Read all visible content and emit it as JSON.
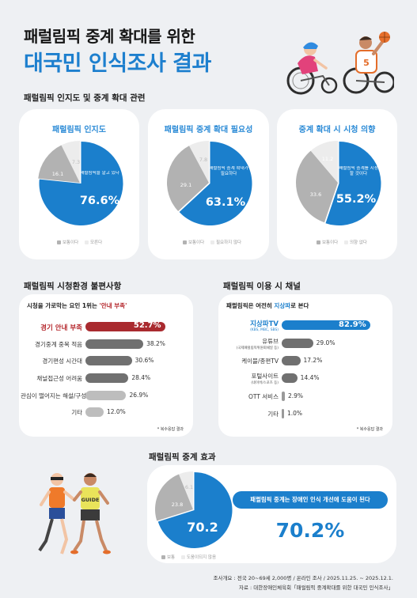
{
  "header": {
    "line1": "패럴림픽 중계 확대를 위한",
    "line2": "대국민 인식조사 결과"
  },
  "section1": {
    "title": "패럴림픽 인지도 및 중계 확대 관련"
  },
  "colors": {
    "blue": "#1b7fcc",
    "gray": "#b2b2b2",
    "light": "#ececec",
    "red": "#a92a2f",
    "darkbar": "#707070",
    "lightbar": "#bdbdbd"
  },
  "chart_data": [
    {
      "type": "pie",
      "title": "패럴림픽 인지도",
      "slices": [
        {
          "label": "패럴림픽을 알고 있다",
          "value": 76.6
        },
        {
          "label": "보통이다",
          "value": 16.1
        },
        {
          "label": "모른다",
          "value": 7.3
        }
      ],
      "highlight_text": "패럴림픽을 알고 있다",
      "highlight_value": "76.6%",
      "legend": [
        "보통이다",
        "모른다"
      ]
    },
    {
      "type": "pie",
      "title": "패럴림픽 중계 확대 필요성",
      "slices": [
        {
          "label": "패럴림픽 중계 확대가 필요하다",
          "value": 63.1
        },
        {
          "label": "보통이다",
          "value": 29.1
        },
        {
          "label": "필요하지 않다",
          "value": 7.8
        }
      ],
      "highlight_text": "패럴림픽 중계 확대가 필요하다",
      "highlight_value": "63.1%",
      "legend": [
        "보통이다",
        "필요하지 않다"
      ]
    },
    {
      "type": "pie",
      "title": "중계 확대 시 시청 의향",
      "slices": [
        {
          "label": "패럴림픽 중계를 시청할 것이다",
          "value": 55.2
        },
        {
          "label": "보통이다",
          "value": 33.6
        },
        {
          "label": "의향 없다",
          "value": 11.2
        }
      ],
      "highlight_text": "패럴림픽 중계를 시청할 것이다",
      "highlight_value": "55.2%",
      "legend": [
        "보통이다",
        "의향 없다"
      ]
    },
    {
      "type": "bar",
      "title": "패럴림픽 시청환경 불편사항",
      "subtitle_pre": "시청을 가로막는 요인 1위는 ",
      "subtitle_hl": "'안내 부족'",
      "categories": [
        "경기 안내 부족",
        "경기중계 중복 적음",
        "경기편성 시간대",
        "채널접근성 어려움",
        "관심이 떨어지는 해설/구성",
        "기타"
      ],
      "values": [
        52.7,
        38.2,
        30.6,
        28.4,
        26.9,
        12.0
      ],
      "value_labels": [
        "52.7%",
        "38.2%",
        "30.6%",
        "28.4%",
        "26.9%",
        "12.0%"
      ],
      "note": "* 복수응답 결과"
    },
    {
      "type": "bar",
      "title": "패럴림픽 이용 시 채널",
      "subtitle_pre": "패럴림픽은 여전히 ",
      "subtitle_hl": "지상파",
      "subtitle_post": "로 본다",
      "categories": [
        "지상파TV",
        "유튜브",
        "케이블/종편TV",
        "포털사이트",
        "OTT 서비스",
        "기타"
      ],
      "sublabels": [
        "(KBS, MBC, SBS)",
        "(국제패럴림픽위원회채널 등)",
        "",
        "(네이버/스포츠 등)",
        "",
        ""
      ],
      "values": [
        82.9,
        29.0,
        17.2,
        14.4,
        2.9,
        1.0
      ],
      "value_labels": [
        "82.9%",
        "29.0%",
        "17.2%",
        "14.4%",
        "2.9%",
        "1.0%"
      ],
      "note": "* 복수응답 결과"
    },
    {
      "type": "pie",
      "title": "패럴림픽 중계 효과",
      "slices": [
        {
          "label": "패럴림픽 중계는 장애인 인식 개선에 도움이 된다",
          "value": 70.2
        },
        {
          "label": "보통",
          "value": 23.8
        },
        {
          "label": "도움이 되지 않음",
          "value": 6.1
        }
      ],
      "highlight_text": "패럴림픽 중계는 장애인 인식 개선에 도움이 된다",
      "highlight_value": "70.2%",
      "center_value": "70.2",
      "legend": [
        "보통",
        "도움이되지 않음"
      ]
    }
  ],
  "illustration": {
    "bib": "5",
    "guide": "GUIDE"
  },
  "footer": {
    "line1": "조사개요 : 전국 20~69세 2,000명 / 온라인 조사 / 2025.11.25. ~ 2025.12.1.",
    "line2": "자료 : 대한장애인체육회「패럴림픽 중계확대를 위한 대국민 인식조사」"
  }
}
